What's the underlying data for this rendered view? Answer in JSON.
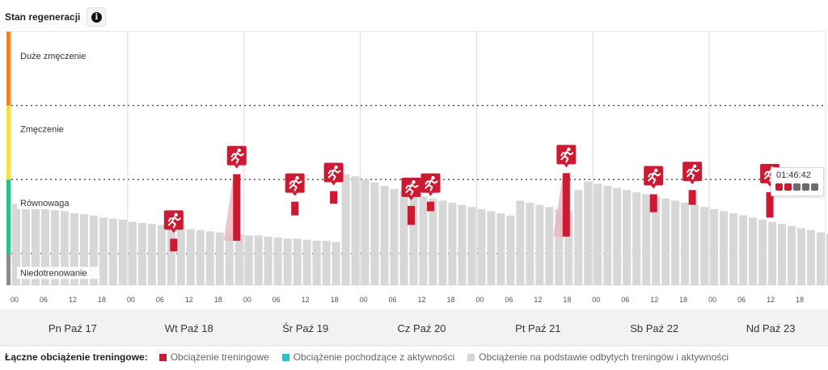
{
  "header": {
    "title": "Stan regeneracji",
    "info_icon": "info-icon"
  },
  "colors": {
    "zone_high": "#f58220",
    "zone_fatigue": "#f5e04a",
    "zone_balance": "#2bbf8a",
    "zone_under": "#8c8c8c",
    "training": "#cc1a33",
    "activity": "#22c4cc",
    "background_load": "#d7d7d7",
    "grid": "#d9d9d9"
  },
  "chart_data": {
    "type": "bar",
    "title": "Stan regeneracji",
    "zones": [
      "Duże zmęczenie",
      "Zmęczenie",
      "Równowaga",
      "Niedotrenowanie"
    ],
    "y_zone_boundaries": [
      0,
      0.3,
      1.0,
      1.7,
      2.4
    ],
    "ylim": [
      0,
      2.4
    ],
    "x_unit": "hour",
    "xlim": [
      0,
      168
    ],
    "x_tick_labels": [
      "00",
      "06",
      "12",
      "18"
    ],
    "x_tick_step_hours": 6,
    "days": [
      "Pn Paź 17",
      "Wt Paź 18",
      "Śr Paź 19",
      "Cz Paź 20",
      "Pt Paź 21",
      "Sb Paź 22",
      "Nd Paź 23"
    ],
    "bar_interval_hours": 2,
    "series": [
      {
        "name": "Obciążenie na podstawie odbytych treningów i aktywności",
        "values": [
          0.77,
          0.75,
          0.74,
          0.72,
          0.71,
          0.7,
          0.68,
          0.67,
          0.66,
          0.64,
          0.63,
          0.62,
          0.6,
          0.59,
          0.58,
          0.57,
          0.56,
          0.54,
          0.53,
          0.52,
          0.51,
          0.5,
          0.49,
          0.48,
          0.47,
          0.47,
          0.46,
          0.45,
          0.44,
          0.44,
          0.43,
          0.42,
          0.42,
          0.41,
          1.05,
          1.03,
          1.0,
          0.97,
          0.94,
          0.91,
          0.89,
          0.86,
          0.84,
          0.82,
          0.8,
          0.78,
          0.76,
          0.74,
          0.72,
          0.7,
          0.68,
          0.66,
          0.8,
          0.78,
          0.76,
          0.74,
          0.72,
          0.7,
          0.9,
          0.98,
          0.96,
          0.94,
          0.92,
          0.9,
          0.88,
          0.86,
          0.84,
          0.82,
          0.8,
          0.78,
          0.76,
          0.74,
          0.72,
          0.7,
          0.68,
          0.66,
          0.64,
          0.62,
          0.6,
          0.58,
          0.56,
          0.54,
          0.52,
          0.5,
          0.48,
          0.47,
          0.46,
          0.44,
          0.43,
          0.42,
          0.41,
          0.4,
          0.39,
          0.38,
          0.37,
          0.36,
          0.35,
          0.34,
          0.33,
          0.32,
          0.31,
          0.3,
          0.29,
          0.28,
          0.27,
          0.26,
          0.25,
          0.24,
          0.23,
          0.22,
          0.96,
          0.94,
          0.92,
          0.9,
          0.88,
          0.86,
          0.84,
          0.82,
          0.8,
          0.78,
          0.76,
          0.74,
          0.72,
          0.7,
          0.68,
          0.66,
          0.64,
          0.62,
          0.6,
          0.58,
          0.56,
          0.54,
          0.52,
          0.5,
          0.48,
          0.46,
          0.44,
          0.42,
          0.4,
          0.82,
          0.81,
          0.8,
          0.79,
          0.78,
          0.77,
          0.76,
          0.75,
          0.82,
          0.81,
          0.8,
          0.79,
          0.78,
          0.77,
          0.76,
          0.75,
          0.74,
          0.73,
          0.72,
          0.71,
          0.7,
          0.69,
          0.68,
          0.67,
          0.66,
          0.65,
          0.64,
          0.63,
          0.62,
          0.61,
          0.6,
          0.59,
          0.58,
          0.57,
          0.56,
          0.92,
          0.91,
          0.9,
          0.89,
          0.88,
          0.87,
          0.86,
          0.85,
          0.84,
          0.83,
          0.82,
          0.81,
          0.8,
          0.79,
          0.78,
          0.77,
          0.76,
          0.75,
          0.74,
          0.73,
          0.72,
          0.71,
          0.7
        ]
      },
      {
        "name": "Obciążenie treningowe",
        "workouts": [
          {
            "hour": 33.5,
            "base": 0.32,
            "top": 0.44
          },
          {
            "hour": 46.5,
            "base": 0.42,
            "top": 1.05
          },
          {
            "hour": 58.5,
            "base": 0.66,
            "top": 0.79
          },
          {
            "hour": 66.5,
            "base": 0.77,
            "top": 0.89
          },
          {
            "hour": 82.5,
            "base": 0.57,
            "top": 0.75
          },
          {
            "hour": 86.5,
            "base": 0.7,
            "top": 0.79
          },
          {
            "hour": 114.5,
            "base": 0.46,
            "top": 1.06
          },
          {
            "hour": 132.5,
            "base": 0.69,
            "top": 0.86
          },
          {
            "hour": 140.5,
            "base": 0.76,
            "top": 0.9
          },
          {
            "hour": 156.5,
            "base": 0.64,
            "top": 0.88
          }
        ]
      },
      {
        "name": "Obciążenie pochodzące z aktywności",
        "values": []
      }
    ]
  },
  "tooltip": {
    "time": "01:46:42",
    "level_colors": [
      "#cc1a33",
      "#cc1a33",
      "#6b6b6b",
      "#6b6b6b",
      "#6b6b6b"
    ]
  },
  "legend": {
    "title": "Łączne obciążenie treningowe:",
    "items": [
      {
        "label": "Obciążenie treningowe",
        "color": "#cc1a33"
      },
      {
        "label": "Obciążenie pochodzące z aktywności",
        "color": "#22c4cc"
      },
      {
        "label": "Obciążenie na podstawie odbytych treningów i aktywności",
        "color": "#d7d7d7"
      }
    ]
  }
}
